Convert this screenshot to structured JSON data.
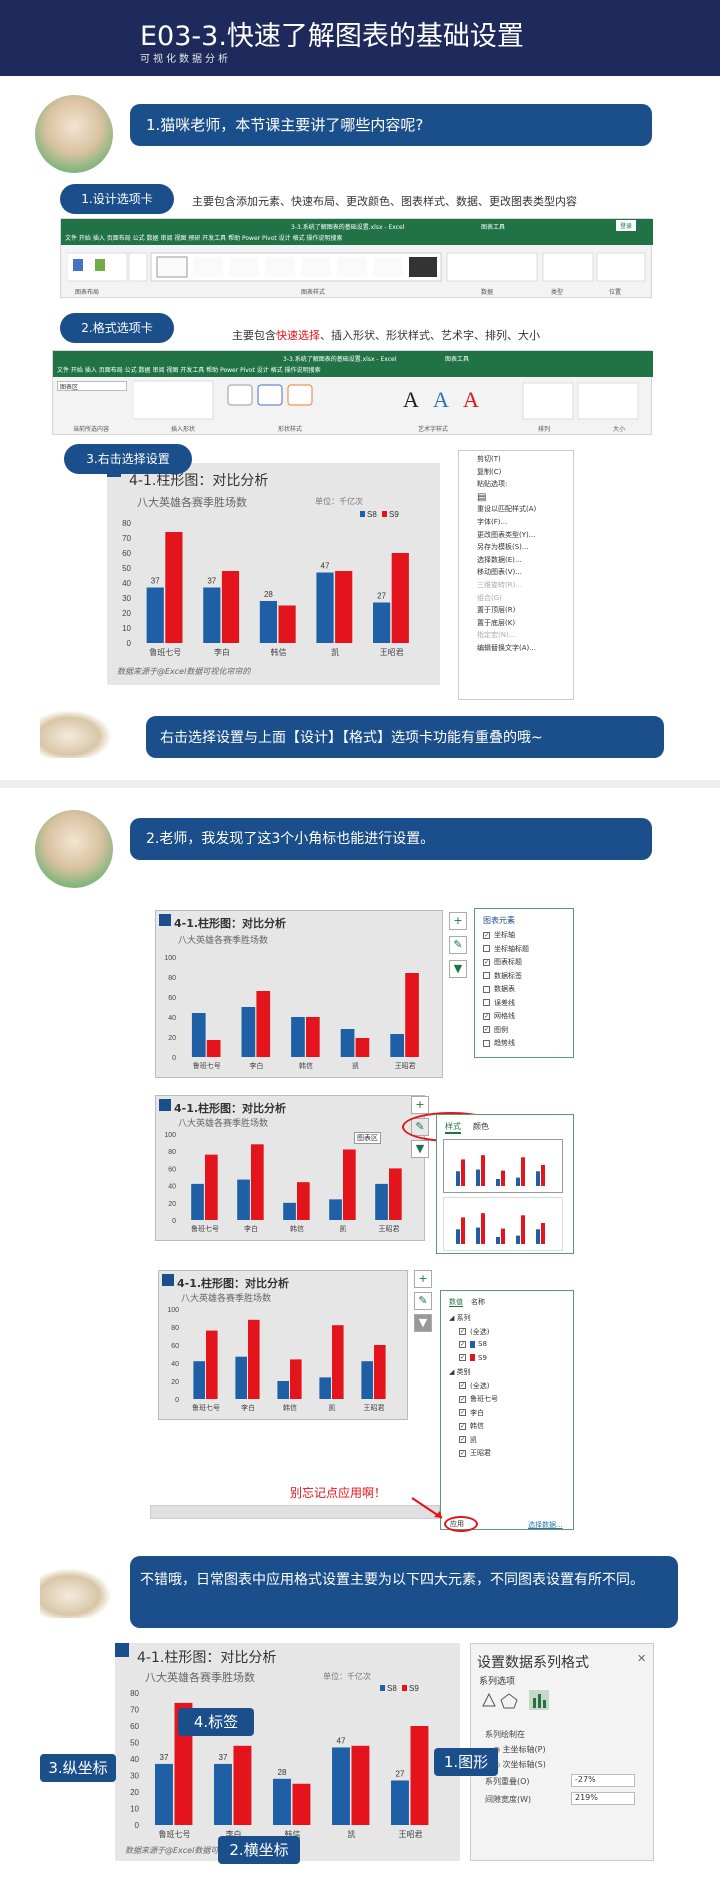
{
  "header": {
    "title": "E03-3.快速了解图表的基础设置",
    "subtitle": "可视化数据分析"
  },
  "q1": "1.猫咪老师，本节课主要讲了哪些内容呢?",
  "s1": {
    "pill": "1.设计选项卡",
    "desc": "主要包含添加元素、快速布局、更改颜色、图表样式、数据、更改图表类型内容"
  },
  "ribbon1": {
    "title": "3-3.系统了解图表的基础设置.xlsx - Excel",
    "tool": "图表工具",
    "login": "登录",
    "tabs": "文件   开始   插入   页面布局   公式   数据   审阅   视图   预研   开发工具   帮助   Power Pivot   设计   格式   操作说明搜索",
    "groups": [
      "图表布局",
      "图表样式",
      "数据",
      "类型",
      "位置"
    ]
  },
  "s2": {
    "pill": "2.格式选项卡",
    "desc_pre": "主要包含",
    "desc_red": "快速选择",
    "desc_post": "、插入形状、形状样式、艺术字、排列、大小"
  },
  "ribbon2": {
    "title": "3-3.系统了解图表的基础设置.xlsx - Excel",
    "tool": "图表工具",
    "tabs": "文件   开始   插入   页面布局   公式   数据   审阅   视图   开发工具   帮助   Power Pivot   设计   格式   操作说明搜索",
    "groups": [
      "当前所选内容",
      "插入形状",
      "形状样式",
      "艺术字样式",
      "排列",
      "大小"
    ],
    "chart_area": "图表区"
  },
  "s3": {
    "pill": "3.右击选择设置"
  },
  "chart_main": {
    "title": "4-1.柱形图：对比分析",
    "subtitle": "八大英雄各赛季胜场数",
    "unit": "单位：千亿次",
    "source": "数据来源于@Excel数据可视化帘帘的"
  },
  "context_menu": [
    "剪切(T)",
    "复制(C)",
    "粘贴选项:",
    "",
    "重设以匹配样式(A)",
    "字体(F)...",
    "更改图表类型(Y)...",
    "另存为模板(S)...",
    "选择数据(E)...",
    "移动图表(V)...",
    "三维旋转(R)...",
    "组合(G)",
    "置于顶层(R)",
    "置于底层(K)",
    "指定宏(N)...",
    "编辑替换文字(A)..."
  ],
  "tip1": "右击选择设置与上面【设计】【格式】选项卡功能有重叠的哦~",
  "q2": "2.老师，我发现了这3个小角标也能进行设置。",
  "elements_pane": {
    "title": "图表元素",
    "items": [
      {
        "label": "坐标轴",
        "checked": true
      },
      {
        "label": "坐标轴标题",
        "checked": false
      },
      {
        "label": "图表标题",
        "checked": true
      },
      {
        "label": "数据标签",
        "checked": false
      },
      {
        "label": "数据表",
        "checked": false
      },
      {
        "label": "误差线",
        "checked": false
      },
      {
        "label": "网格线",
        "checked": true
      },
      {
        "label": "图例",
        "checked": true
      },
      {
        "label": "趋势线",
        "checked": false
      }
    ]
  },
  "style_pane": {
    "tab1": "样式",
    "tab2": "颜色",
    "chart_area_tag": "图表区"
  },
  "filter_pane": {
    "tab1": "数值",
    "tab2": "名称",
    "series_head": "系列",
    "cat_head": "类别",
    "all": "(全选)",
    "series": [
      "S8",
      "S9"
    ],
    "cats": [
      "(全选)",
      "鲁班七号",
      "李白",
      "韩信",
      "凯",
      "王昭君"
    ],
    "apply": "应用",
    "select_data": "选择数据...",
    "reminder": "别忘记点应用啊！"
  },
  "small_chart": {
    "title": "4-1.柱形图：对比分析",
    "subtitle": "八大英雄各赛季胜场数"
  },
  "tip2": "不错哦，日常图表中应用格式设置主要为以下四大元素，不同图表设置有所不同。",
  "format_pane": {
    "title": "设置数据系列格式",
    "option": "系列选项",
    "plot_on": "系列绘制在",
    "primary": "主坐标轴(P)",
    "secondary": "次坐标轴(S)",
    "overlap_label": "系列重叠(O)",
    "overlap_val": "-27%",
    "gap_label": "间隙宽度(W)",
    "gap_val": "219%"
  },
  "labels": {
    "shape": "1.图形",
    "xaxis": "2.横坐标",
    "yaxis": "3.纵坐标",
    "datalabel": "4.标签"
  },
  "chart_data": [
    {
      "type": "bar",
      "categories": [
        "鲁班七号",
        "李白",
        "韩信",
        "凯",
        "王昭君"
      ],
      "series": [
        {
          "name": "S8",
          "values": [
            37,
            37,
            28,
            47,
            27
          ]
        },
        {
          "name": "S9",
          "values": [
            74,
            48,
            25,
            48,
            60
          ]
        }
      ],
      "ylim": [
        0,
        80
      ],
      "yticks": [
        0,
        10,
        20,
        30,
        40,
        50,
        60,
        70,
        80
      ],
      "title": "4-1.柱形图：对比分析",
      "colors": [
        "#1f5fa6",
        "#e3141b"
      ]
    },
    {
      "type": "bar",
      "categories": [
        "鲁班七号",
        "李白",
        "韩信",
        "凯",
        "王昭君"
      ],
      "series": [
        {
          "name": "S8",
          "values": [
            44,
            50,
            40,
            28,
            23
          ]
        },
        {
          "name": "S9",
          "values": [
            17,
            66,
            40,
            19,
            84
          ]
        }
      ],
      "ylim": [
        0,
        100
      ],
      "yticks": [
        0,
        20,
        40,
        60,
        80,
        100
      ],
      "title": "4-1.柱形图：对比分析"
    },
    {
      "type": "bar",
      "categories": [
        "鲁班七号",
        "李白",
        "韩信",
        "凯",
        "王昭君"
      ],
      "series": [
        {
          "name": "S8",
          "values": [
            42,
            47,
            20,
            24,
            42
          ]
        },
        {
          "name": "S9",
          "values": [
            76,
            88,
            44,
            82,
            60
          ]
        }
      ],
      "ylim": [
        0,
        100
      ],
      "yticks": [
        0,
        20,
        40,
        60,
        80,
        100
      ],
      "title": "4-1.柱形图：对比分析"
    },
    {
      "type": "bar",
      "categories": [
        "鲁班七号",
        "李白",
        "韩信",
        "凯",
        "王昭君"
      ],
      "series": [
        {
          "name": "S8",
          "values": [
            42,
            47,
            20,
            24,
            42
          ]
        },
        {
          "name": "S9",
          "values": [
            76,
            88,
            44,
            82,
            60
          ]
        }
      ],
      "ylim": [
        0,
        100
      ],
      "yticks": [
        0,
        20,
        40,
        60,
        80,
        100
      ],
      "title": "4-1.柱形图：对比分析"
    },
    {
      "type": "bar",
      "categories": [
        "鲁班七号",
        "李白",
        "韩信",
        "凯",
        "王昭君"
      ],
      "series": [
        {
          "name": "S8",
          "values": [
            37,
            37,
            28,
            47,
            27
          ]
        },
        {
          "name": "S9",
          "values": [
            74,
            48,
            25,
            48,
            60
          ]
        }
      ],
      "ylim": [
        0,
        80
      ],
      "yticks": [
        0,
        10,
        20,
        30,
        40,
        50,
        60,
        70,
        80
      ],
      "title": "4-1.柱形图：对比分析"
    }
  ]
}
